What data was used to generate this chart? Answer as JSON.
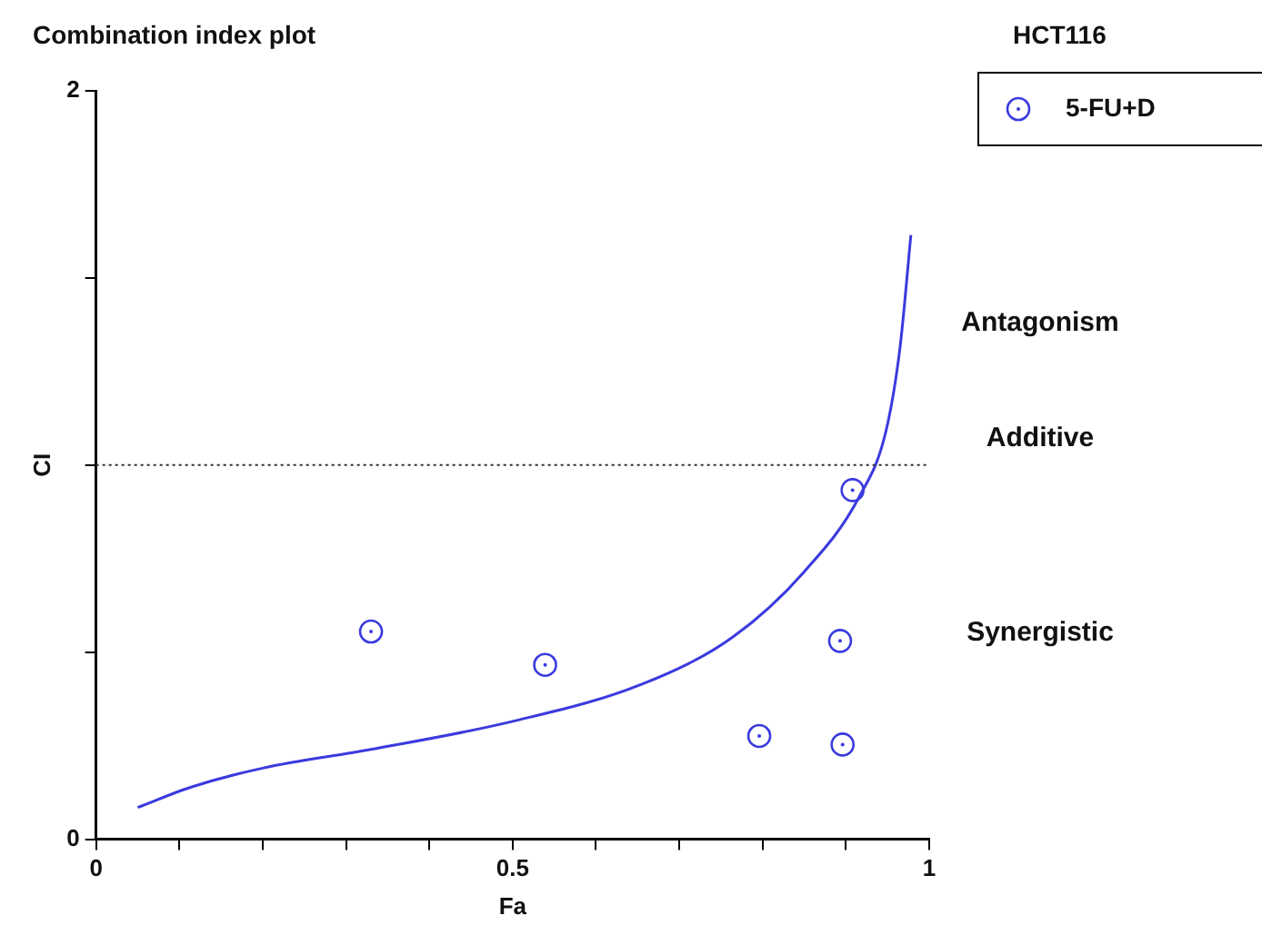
{
  "chart_data": {
    "type": "scatter",
    "title": "Combination index plot",
    "xlabel": "Fa",
    "ylabel": "CI",
    "legend_title": "HCT116",
    "legend": "top right",
    "annotations": [
      "Antagonism",
      "Additive",
      "Synergistic"
    ],
    "xlim": [
      0,
      1
    ],
    "ylim": [
      0,
      2
    ],
    "xticks": [
      0,
      {
        "value": 0.1,
        "label": null
      },
      {
        "value": 0.2,
        "label": null
      },
      {
        "value": 0.3,
        "label": null
      },
      {
        "value": 0.4,
        "label": null
      },
      0.5,
      {
        "value": 0.6,
        "label": null
      },
      {
        "value": 0.7,
        "label": null
      },
      {
        "value": 0.8,
        "label": null
      },
      {
        "value": 0.9,
        "label": null
      },
      1
    ],
    "yticks": [
      0,
      {
        "value": 0.5,
        "label": null
      },
      {
        "value": 1,
        "label": null
      },
      {
        "value": 1.5,
        "label": null
      },
      2
    ],
    "grid": false,
    "ref_lines": [
      {
        "axis": "y",
        "value": 1,
        "color": "#333333",
        "line_style": "dotted"
      }
    ],
    "series": [
      {
        "name": "5-FU+D",
        "type": "scatter",
        "marker": "circle",
        "color": "#3a3adf",
        "x": [
          0.33,
          0.539,
          0.908,
          0.893,
          0.796,
          0.896
        ],
        "values": [
          0.555,
          0.466,
          0.933,
          0.53,
          0.276,
          0.253
        ]
      },
      {
        "type": "line",
        "marker": "none",
        "color": "#3a3adf",
        "x": [
          0.05,
          0.115,
          0.2,
          0.33,
          0.5,
          0.656,
          0.764,
          0.85,
          0.916,
          0.948,
          0.965,
          0.978
        ],
        "values": [
          0.085,
          0.14,
          0.19,
          0.24,
          0.315,
          0.415,
          0.54,
          0.715,
          0.915,
          1.09,
          1.315,
          1.615
        ]
      }
    ]
  }
}
